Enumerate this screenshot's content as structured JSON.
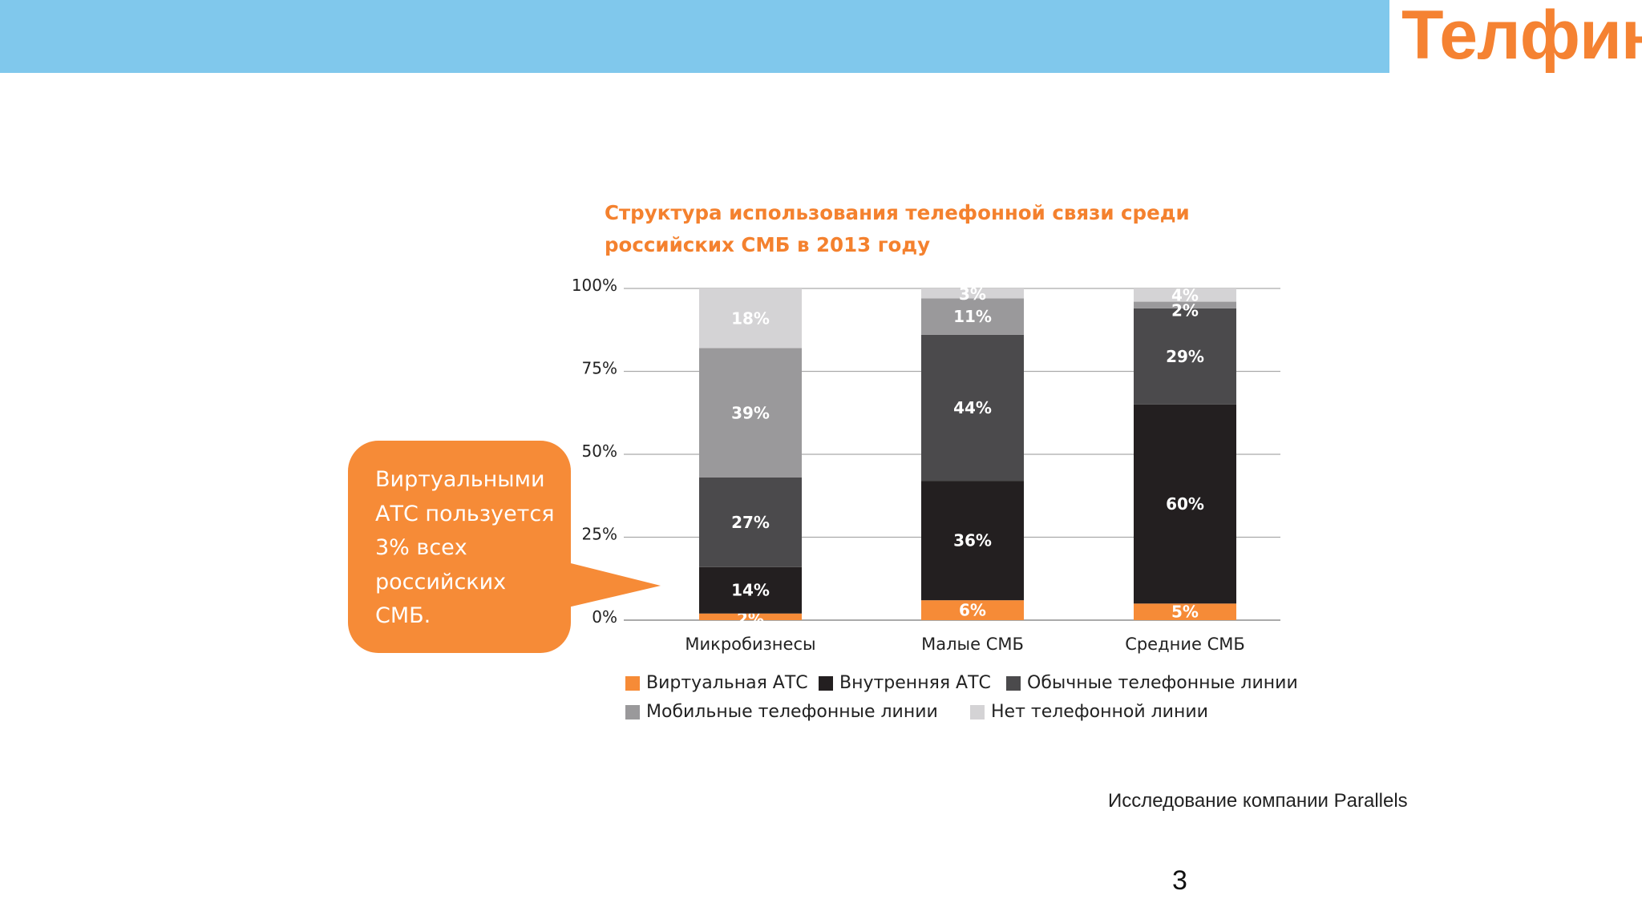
{
  "header": {
    "logo_text": "Телфин"
  },
  "callout": {
    "text": "Виртуальными АТС пользуется 3% всех российских СМБ."
  },
  "footer": {
    "source": "Исследование компании Parallels",
    "page_number": "3"
  },
  "colors": {
    "bar": "#80c8ec",
    "accent": "#f58232",
    "virtual": "#f68b37",
    "internal": "#231f20",
    "regular": "#4b4a4c",
    "mobile": "#9a999b",
    "none": "#d4d3d5"
  },
  "chart_data": {
    "type": "bar",
    "stacked": true,
    "title": "Структура использования телефонной связи среди российских СМБ в 2013 году",
    "xlabel": "",
    "ylabel": "",
    "ylim": [
      0,
      100
    ],
    "y_ticks": [
      "0%",
      "25%",
      "50%",
      "75%",
      "100%"
    ],
    "y_tick_values": [
      0,
      25,
      50,
      75,
      100
    ],
    "categories": [
      "Микробизнесы",
      "Малые СМБ",
      "Средние СМБ"
    ],
    "series": [
      {
        "name": "Виртуальная АТС",
        "color": "#f68b37",
        "values": [
          2,
          6,
          5
        ],
        "labels": [
          "2%",
          "6%",
          "5%"
        ]
      },
      {
        "name": "Внутренняя АТС",
        "color": "#231f20",
        "values": [
          14,
          36,
          60
        ],
        "labels": [
          "14%",
          "36%",
          "60%"
        ]
      },
      {
        "name": "Обычные телефонные линии",
        "color": "#4b4a4c",
        "values": [
          27,
          44,
          29
        ],
        "labels": [
          "27%",
          "44%",
          "29%"
        ]
      },
      {
        "name": "Мобильные телефонные линии",
        "color": "#9a999b",
        "values": [
          39,
          11,
          2
        ],
        "labels": [
          "39%",
          "11%",
          "2%"
        ]
      },
      {
        "name": "Нет телефонной линии",
        "color": "#d4d3d5",
        "values": [
          18,
          3,
          4
        ],
        "labels": [
          "18%",
          "3%",
          "4%"
        ]
      }
    ],
    "legend_position": "bottom"
  }
}
